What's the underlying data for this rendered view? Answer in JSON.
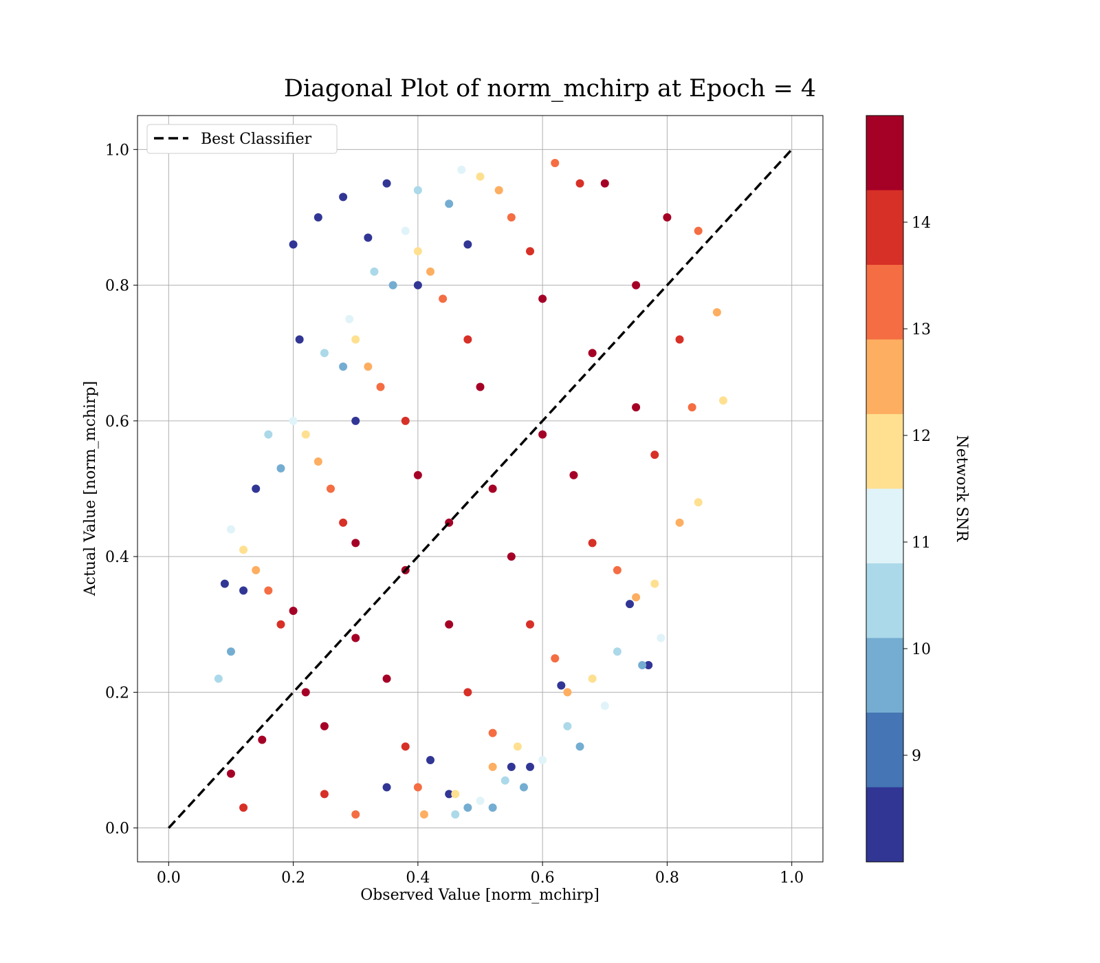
{
  "chart_data": {
    "type": "scatter",
    "title": "Diagonal Plot of norm_mchirp at Epoch = 4",
    "xlabel": "Observed Value [norm_mchirp]",
    "ylabel": "Actual Value [norm_mchirp]",
    "xlim": [
      -0.05,
      1.05
    ],
    "ylim": [
      -0.05,
      1.05
    ],
    "x_ticks": [
      "0.0",
      "0.2",
      "0.4",
      "0.6",
      "0.8",
      "1.0"
    ],
    "y_ticks": [
      "0.0",
      "0.2",
      "0.4",
      "0.6",
      "0.8",
      "1.0"
    ],
    "grid": true,
    "legend": {
      "placement": "top-left",
      "entries": [
        {
          "label": "Best Classifier",
          "style": "dashed",
          "color": "#000000"
        }
      ]
    },
    "reference_line": {
      "name": "Best Classifier",
      "x": [
        0.0,
        1.0
      ],
      "y": [
        0.0,
        1.0
      ]
    },
    "colorbar": {
      "label": "Network SNR",
      "range": [
        8.0,
        15.0
      ],
      "tick_values": [
        9,
        10,
        11,
        12,
        13,
        14
      ],
      "tick_labels": [
        "9",
        "10",
        "11",
        "12",
        "13",
        "14"
      ],
      "levels": [
        {
          "from": 8.0,
          "to": 8.7,
          "color": "#313695"
        },
        {
          "from": 8.7,
          "to": 9.4,
          "color": "#4575b4"
        },
        {
          "from": 9.4,
          "to": 10.1,
          "color": "#74add1"
        },
        {
          "from": 10.1,
          "to": 10.8,
          "color": "#abd9e9"
        },
        {
          "from": 10.8,
          "to": 11.5,
          "color": "#e0f3f8"
        },
        {
          "from": 11.5,
          "to": 12.2,
          "color": "#fee090"
        },
        {
          "from": 12.2,
          "to": 12.9,
          "color": "#fdae61"
        },
        {
          "from": 12.9,
          "to": 13.6,
          "color": "#f46d43"
        },
        {
          "from": 13.6,
          "to": 14.3,
          "color": "#d73027"
        },
        {
          "from": 14.3,
          "to": 15.0,
          "color": "#a50026"
        }
      ]
    },
    "series": [
      {
        "snr_encoding": "color",
        "points": [
          [
            0.1,
            0.08,
            14.8
          ],
          [
            0.15,
            0.13,
            14.8
          ],
          [
            0.22,
            0.2,
            14.8
          ],
          [
            0.3,
            0.28,
            14.8
          ],
          [
            0.38,
            0.38,
            14.8
          ],
          [
            0.45,
            0.45,
            14.8
          ],
          [
            0.52,
            0.5,
            14.8
          ],
          [
            0.6,
            0.58,
            14.8
          ],
          [
            0.68,
            0.7,
            14.8
          ],
          [
            0.75,
            0.8,
            14.8
          ],
          [
            0.8,
            0.9,
            14.8
          ],
          [
            0.7,
            0.95,
            14.8
          ],
          [
            0.2,
            0.32,
            14.8
          ],
          [
            0.3,
            0.42,
            14.8
          ],
          [
            0.4,
            0.52,
            14.8
          ],
          [
            0.5,
            0.65,
            14.8
          ],
          [
            0.6,
            0.78,
            14.8
          ],
          [
            0.25,
            0.15,
            14.8
          ],
          [
            0.35,
            0.22,
            14.8
          ],
          [
            0.45,
            0.3,
            14.8
          ],
          [
            0.55,
            0.4,
            14.8
          ],
          [
            0.65,
            0.52,
            14.8
          ],
          [
            0.75,
            0.62,
            14.8
          ],
          [
            0.82,
            0.72,
            14.0
          ],
          [
            0.78,
            0.55,
            14.0
          ],
          [
            0.68,
            0.42,
            14.0
          ],
          [
            0.58,
            0.3,
            14.0
          ],
          [
            0.48,
            0.2,
            14.0
          ],
          [
            0.38,
            0.12,
            14.0
          ],
          [
            0.25,
            0.05,
            14.0
          ],
          [
            0.12,
            0.03,
            14.0
          ],
          [
            0.18,
            0.3,
            14.0
          ],
          [
            0.28,
            0.45,
            14.0
          ],
          [
            0.38,
            0.6,
            14.0
          ],
          [
            0.48,
            0.72,
            14.0
          ],
          [
            0.58,
            0.85,
            14.0
          ],
          [
            0.66,
            0.95,
            14.0
          ],
          [
            0.85,
            0.88,
            13.2
          ],
          [
            0.84,
            0.62,
            13.2
          ],
          [
            0.72,
            0.38,
            13.2
          ],
          [
            0.62,
            0.25,
            13.2
          ],
          [
            0.52,
            0.14,
            13.2
          ],
          [
            0.4,
            0.06,
            13.2
          ],
          [
            0.3,
            0.02,
            13.2
          ],
          [
            0.16,
            0.35,
            13.2
          ],
          [
            0.26,
            0.5,
            13.2
          ],
          [
            0.34,
            0.65,
            13.2
          ],
          [
            0.44,
            0.78,
            13.2
          ],
          [
            0.55,
            0.9,
            13.2
          ],
          [
            0.62,
            0.98,
            13.2
          ],
          [
            0.88,
            0.76,
            12.6
          ],
          [
            0.82,
            0.45,
            12.6
          ],
          [
            0.75,
            0.34,
            12.6
          ],
          [
            0.64,
            0.2,
            12.6
          ],
          [
            0.52,
            0.09,
            12.6
          ],
          [
            0.41,
            0.02,
            12.6
          ],
          [
            0.14,
            0.38,
            12.6
          ],
          [
            0.24,
            0.54,
            12.6
          ],
          [
            0.32,
            0.68,
            12.6
          ],
          [
            0.42,
            0.82,
            12.6
          ],
          [
            0.53,
            0.94,
            12.6
          ],
          [
            0.89,
            0.63,
            11.8
          ],
          [
            0.85,
            0.48,
            11.8
          ],
          [
            0.78,
            0.36,
            11.8
          ],
          [
            0.68,
            0.22,
            11.8
          ],
          [
            0.56,
            0.12,
            11.8
          ],
          [
            0.46,
            0.05,
            11.8
          ],
          [
            0.12,
            0.41,
            11.8
          ],
          [
            0.22,
            0.58,
            11.8
          ],
          [
            0.3,
            0.72,
            11.8
          ],
          [
            0.4,
            0.85,
            11.8
          ],
          [
            0.5,
            0.96,
            11.8
          ],
          [
            0.79,
            0.28,
            11.1
          ],
          [
            0.7,
            0.18,
            11.1
          ],
          [
            0.6,
            0.1,
            11.1
          ],
          [
            0.5,
            0.04,
            11.1
          ],
          [
            0.1,
            0.44,
            11.1
          ],
          [
            0.2,
            0.6,
            11.1
          ],
          [
            0.29,
            0.75,
            11.1
          ],
          [
            0.38,
            0.88,
            11.1
          ],
          [
            0.47,
            0.97,
            11.1
          ],
          [
            0.72,
            0.26,
            10.4
          ],
          [
            0.64,
            0.15,
            10.4
          ],
          [
            0.54,
            0.07,
            10.4
          ],
          [
            0.46,
            0.02,
            10.4
          ],
          [
            0.16,
            0.58,
            10.4
          ],
          [
            0.25,
            0.7,
            10.4
          ],
          [
            0.33,
            0.82,
            10.4
          ],
          [
            0.4,
            0.94,
            10.4
          ],
          [
            0.08,
            0.22,
            10.4
          ],
          [
            0.76,
            0.24,
            9.7
          ],
          [
            0.66,
            0.12,
            9.7
          ],
          [
            0.57,
            0.06,
            9.7
          ],
          [
            0.48,
            0.03,
            9.7
          ],
          [
            0.18,
            0.53,
            9.7
          ],
          [
            0.28,
            0.68,
            9.7
          ],
          [
            0.36,
            0.8,
            9.7
          ],
          [
            0.45,
            0.92,
            9.7
          ],
          [
            0.1,
            0.26,
            9.7
          ],
          [
            0.52,
            0.03,
            9.7
          ],
          [
            0.74,
            0.33,
            8.2
          ],
          [
            0.63,
            0.21,
            8.2
          ],
          [
            0.55,
            0.09,
            8.2
          ],
          [
            0.45,
            0.05,
            8.2
          ],
          [
            0.35,
            0.06,
            8.2
          ],
          [
            0.14,
            0.5,
            8.2
          ],
          [
            0.21,
            0.72,
            8.2
          ],
          [
            0.28,
            0.93,
            8.2
          ],
          [
            0.35,
            0.95,
            8.2
          ],
          [
            0.09,
            0.36,
            8.2
          ],
          [
            0.2,
            0.86,
            8.2
          ],
          [
            0.24,
            0.9,
            8.2
          ],
          [
            0.32,
            0.87,
            8.2
          ],
          [
            0.4,
            0.8,
            8.2
          ],
          [
            0.48,
            0.86,
            8.2
          ],
          [
            0.12,
            0.35,
            8.2
          ],
          [
            0.77,
            0.24,
            8.2
          ],
          [
            0.58,
            0.09,
            8.2
          ],
          [
            0.42,
            0.1,
            8.2
          ],
          [
            0.3,
            0.6,
            8.2
          ]
        ]
      }
    ]
  }
}
